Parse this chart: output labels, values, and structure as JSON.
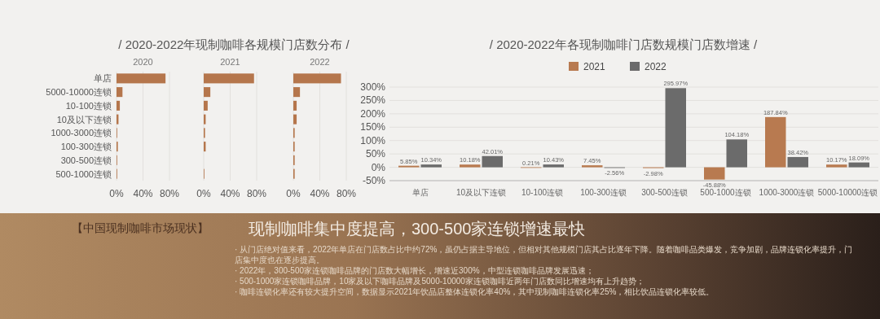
{
  "chart_data": [
    {
      "type": "bar",
      "orientation": "horizontal",
      "title": "/ 2020-2022年现制咖啡各规模门店数分布 /",
      "subtitle": "2020",
      "categories": [
        "单店",
        "5000-10000连锁",
        "10-100连锁",
        "10及以下连锁",
        "1000-3000连锁",
        "100-300连锁",
        "300-500连锁",
        "500-1000连锁"
      ],
      "values": [
        74,
        9,
        5,
        3,
        1,
        2,
        1,
        1
      ],
      "color": "#b5764c",
      "xlim": [
        0,
        80
      ],
      "xticks": [
        {
          "value": 0,
          "label": "0%"
        },
        {
          "value": 40,
          "label": "40%"
        },
        {
          "value": 80,
          "label": "80%"
        }
      ],
      "grid": "x"
    },
    {
      "type": "bar",
      "orientation": "horizontal",
      "subtitle": "2021",
      "values": [
        76,
        10,
        6,
        3,
        2,
        3,
        0,
        1
      ],
      "color": "#b5764c",
      "xlim": [
        0,
        80
      ],
      "xticks": [
        {
          "value": 0,
          "label": "0%"
        },
        {
          "value": 40,
          "label": "40%"
        },
        {
          "value": 80,
          "label": "80%"
        }
      ],
      "grid": "x",
      "tick_labels": "x"
    },
    {
      "type": "bar",
      "orientation": "horizontal",
      "subtitle": "2022",
      "values": [
        72,
        10,
        5,
        5,
        2,
        2,
        2,
        2
      ],
      "color": "#b5764c",
      "xlim": [
        0,
        80
      ],
      "xticks": [
        {
          "value": 0,
          "label": "0%"
        },
        {
          "value": 40,
          "label": "40%"
        },
        {
          "value": 80,
          "label": "80%"
        }
      ],
      "grid": "x",
      "tick_labels": "x"
    },
    {
      "type": "bar",
      "title": "/ 2020-2022年各现制咖啡门店数规模门店数增速 /",
      "categories": [
        "单店",
        "10及以下连锁",
        "10-100连锁",
        "100-300连锁",
        "300-500连锁",
        "500-1000连锁",
        "1000-3000连锁",
        "5000-10000连锁"
      ],
      "series": [
        {
          "name": "2021",
          "color": "#b87a50",
          "values": [
            5.85,
            10.18,
            0.21,
            7.45,
            -2.98,
            -45.88,
            187.84,
            10.17
          ],
          "value_labels": [
            "5.85%",
            "10.18%",
            "0.21%",
            "7.45%",
            "-2.98%",
            "-45.88%",
            "187.84%",
            "10.17%"
          ]
        },
        {
          "name": "2022",
          "color": "#6b6b6b",
          "values": [
            10.34,
            42.01,
            10.43,
            -2.56,
            295.97,
            104.18,
            38.42,
            18.09
          ],
          "value_labels": [
            "10.34%",
            "42.01%",
            "10.43%",
            "-2.56%",
            "295.97%",
            "104.18%",
            "38.42%",
            "18.09%"
          ]
        }
      ],
      "ylim": [
        -50,
        300
      ],
      "yticks": [
        {
          "value": -50,
          "label": "-50%"
        },
        {
          "value": 0,
          "label": "0%"
        },
        {
          "value": 50,
          "label": "50%"
        },
        {
          "value": 100,
          "label": "100%"
        },
        {
          "value": 150,
          "label": "150%"
        },
        {
          "value": 200,
          "label": "200%"
        },
        {
          "value": 250,
          "label": "250%"
        },
        {
          "value": 300,
          "label": "300%"
        }
      ],
      "grid": "y",
      "legend": "top"
    },
    {
      "type": "other",
      "subtitle": "【中国现制咖啡市场现状】",
      "title": "现制咖啡集中度提高，300-500家连锁增速最快",
      "annotations": [
        "· 从门店绝对值来看，2022年单店在门店数占比中约72%，虽仍占据主导地位，但相对其他规模门店其占比逐年下降。随着咖啡品类爆发，竞争加剧，品牌连锁化率提升，门店集中度也在逐步提高。",
        "· 2022年，300-500家连锁咖啡品牌的门店数大幅增长，增速近300%，中型连锁咖啡品牌发展迅速；",
        "· 500-1000家连锁咖啡品牌，10家及以下咖啡品牌及5000-10000家连锁咖啡近两年门店数同比增速均有上升趋势；",
        "· 咖啡连锁化率还有较大提升空间，数据显示2021年饮品店整体连锁化率40%，其中现制咖啡连锁化率25%，相比饮品连锁化率较低。"
      ]
    }
  ]
}
